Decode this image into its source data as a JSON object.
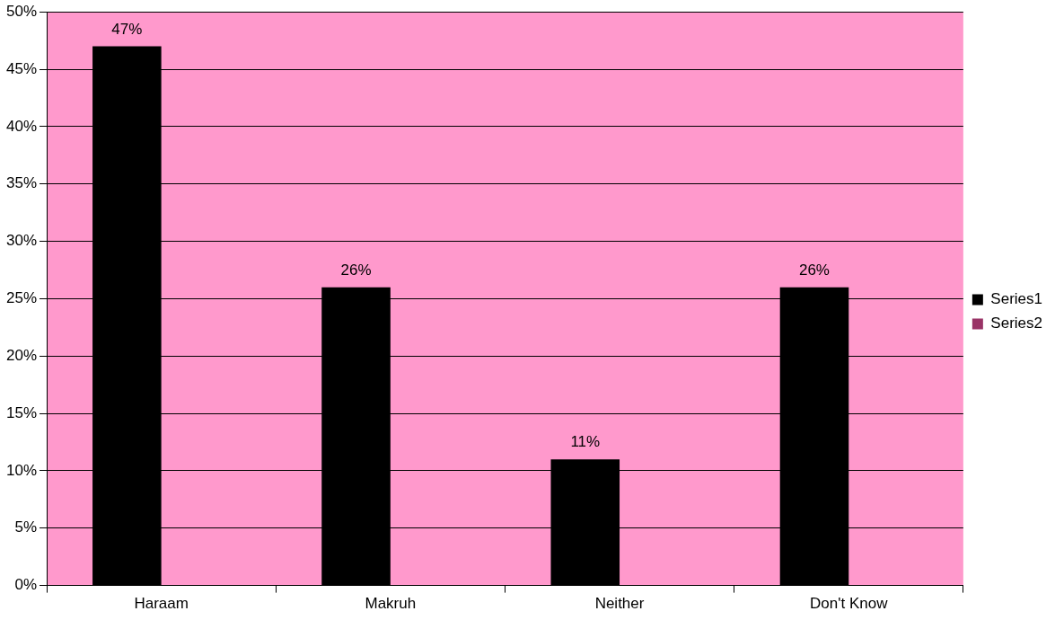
{
  "chart_data": {
    "type": "bar",
    "categories": [
      "Haraam",
      "Makruh",
      "Neither",
      "Don't Know"
    ],
    "series": [
      {
        "name": "Series1",
        "color": "#000000",
        "values": [
          47,
          26,
          11,
          26
        ],
        "value_labels": [
          "47%",
          "26%",
          "11%",
          "26%"
        ]
      },
      {
        "name": "Series2",
        "color": "#993366",
        "values": [
          null,
          null,
          null,
          null
        ]
      }
    ],
    "ylim": [
      0,
      50
    ],
    "yticks": [
      {
        "value": 0,
        "label": "0%"
      },
      {
        "value": 5,
        "label": "5%"
      },
      {
        "value": 10,
        "label": "10%"
      },
      {
        "value": 15,
        "label": "15%"
      },
      {
        "value": 20,
        "label": "20%"
      },
      {
        "value": 25,
        "label": "25%"
      },
      {
        "value": 30,
        "label": "30%"
      },
      {
        "value": 35,
        "label": "35%"
      },
      {
        "value": 40,
        "label": "40%"
      },
      {
        "value": 45,
        "label": "45%"
      },
      {
        "value": 50,
        "label": "50%"
      }
    ],
    "grid": "y",
    "legend": "right"
  }
}
